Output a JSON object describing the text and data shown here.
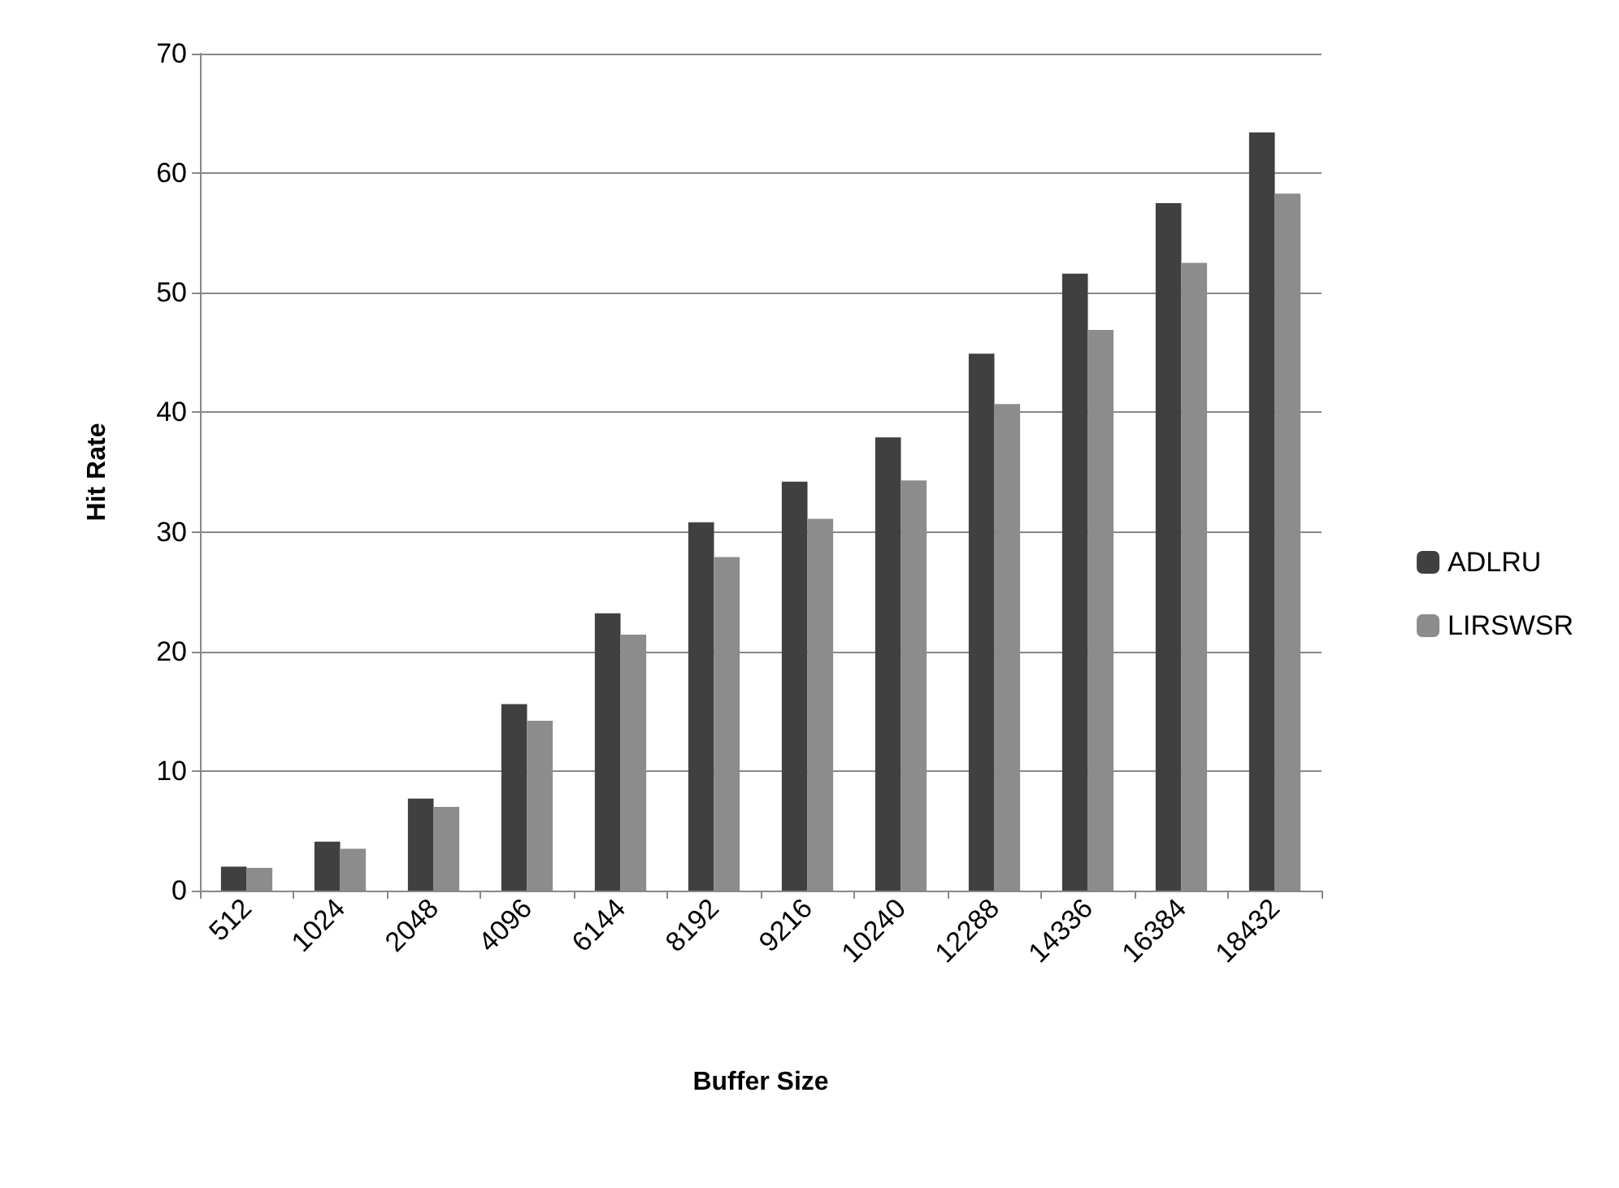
{
  "chart_data": {
    "type": "bar",
    "xlabel": "Buffer Size",
    "ylabel": "Hit Rate",
    "categories": [
      "512",
      "1024",
      "2048",
      "4096",
      "6144",
      "8192",
      "9216",
      "10240",
      "12288",
      "14336",
      "16384",
      "18432"
    ],
    "series": [
      {
        "name": "ADLRU",
        "color": "#404040",
        "values": [
          2.0,
          4.1,
          7.7,
          15.6,
          23.2,
          30.8,
          34.2,
          37.9,
          44.9,
          51.6,
          57.5,
          63.4
        ]
      },
      {
        "name": "LIRSWSR",
        "color": "#8c8c8c",
        "values": [
          1.9,
          3.5,
          7.0,
          14.2,
          21.4,
          27.9,
          31.1,
          34.3,
          40.7,
          46.9,
          52.5,
          58.3
        ]
      }
    ],
    "ylim": [
      0,
      70
    ],
    "yticks": [
      0,
      10,
      20,
      30,
      40,
      50,
      60,
      70
    ],
    "grid": "y",
    "legend": "right"
  }
}
